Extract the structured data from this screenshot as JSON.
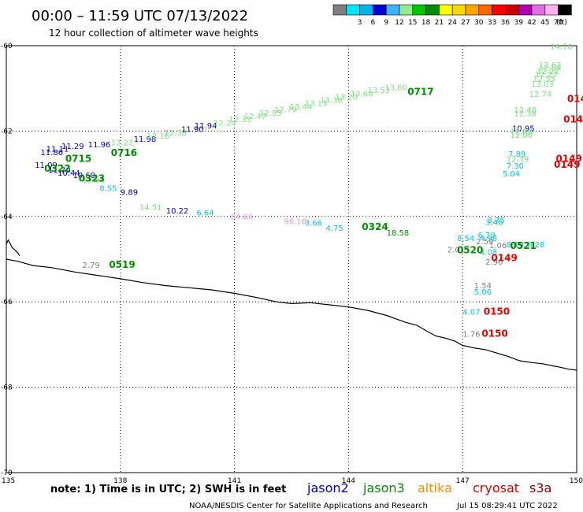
{
  "header": {
    "title": "00:00 – 11:59 UTC 07/13/2022",
    "subtitle": "12 hour collection of altimeter wave heights"
  },
  "legend": {
    "unit": "(ft)",
    "swatches": [
      {
        "label": "",
        "color": "#7f7f7f"
      },
      {
        "label": "3",
        "color": "#00e5ff"
      },
      {
        "label": "6",
        "color": "#00b2ee"
      },
      {
        "label": "9",
        "color": "#0000cd"
      },
      {
        "label": "12",
        "color": "#3cb3ff"
      },
      {
        "label": "15",
        "color": "#90ee90"
      },
      {
        "label": "18",
        "color": "#00c800"
      },
      {
        "label": "21",
        "color": "#008b00"
      },
      {
        "label": "24",
        "color": "#ffff00"
      },
      {
        "label": "27",
        "color": "#ffd700"
      },
      {
        "label": "30",
        "color": "#ffa500"
      },
      {
        "label": "33",
        "color": "#ff6a00"
      },
      {
        "label": "36",
        "color": "#ff0000"
      },
      {
        "label": "39",
        "color": "#cd0000"
      },
      {
        "label": "42",
        "color": "#b000b0"
      },
      {
        "label": "45",
        "color": "#e070e0"
      },
      {
        "label": "70",
        "color": "#ffb0f0"
      },
      {
        "label": "",
        "color": "#000000"
      }
    ]
  },
  "axes": {
    "x_ticks": [
      {
        "label": "135",
        "value": 135
      },
      {
        "label": "138",
        "value": 138
      },
      {
        "label": "141",
        "value": 141
      },
      {
        "label": "144",
        "value": 144
      },
      {
        "label": "147",
        "value": 147
      },
      {
        "label": "150",
        "value": 150
      }
    ],
    "y_ticks": [
      {
        "label": "-60",
        "value": -60
      },
      {
        "label": "-62",
        "value": -62
      },
      {
        "label": "-64",
        "value": -64
      },
      {
        "label": "-66",
        "value": -66
      },
      {
        "label": "-68",
        "value": -68
      },
      {
        "label": "-70",
        "value": -70
      }
    ],
    "xlim": [
      135,
      150
    ],
    "ylim": [
      -70,
      -60
    ],
    "grid": "dotted"
  },
  "colors": {
    "jason2": "#0000cd",
    "jason3": "#008b00",
    "altika": "#ff8c00",
    "cryosat": "#cd0000",
    "s3a": "#8b0000",
    "light_green": "#7ce07c",
    "cyan": "#00c8e6",
    "gray": "#7f7f7f",
    "pink": "#e898d0",
    "red": "#e60000"
  },
  "footer": {
    "note": "note:  1) Time is in UTC;  2) SWH is in feet",
    "satellites": [
      {
        "name": "jason2",
        "color": "#0000cd"
      },
      {
        "name": "jason3",
        "color": "#008b00"
      },
      {
        "name": "altika",
        "color": "#ff8c00"
      },
      {
        "name": "cryosat",
        "color": "#cd0000"
      },
      {
        "name": "s3a",
        "color": "#8b0000"
      }
    ],
    "credit": "NOAA/NESDIS Center for Satellite Applications and Research",
    "timestamp": "Jul 15 08:29:41 UTC 2022"
  },
  "chart_data": {
    "type": "scatter",
    "title": "00:00 – 11:59 UTC 07/13/2022",
    "subtitle": "12 hour collection of altimeter wave heights",
    "xlim": [
      135,
      150
    ],
    "ylim": [
      -70,
      -60
    ],
    "wave_heights": [
      {
        "lon": 138.5,
        "lat": -63.85,
        "text": "14.51",
        "color": "light_green"
      },
      {
        "lon": 139.2,
        "lat": -63.93,
        "text": "10.22",
        "color": "jason2"
      },
      {
        "lon": 140.0,
        "lat": -63.98,
        "text": "6.64",
        "color": "cyan"
      },
      {
        "lon": 140.9,
        "lat": -64.07,
        "text": "64.66",
        "color": "pink"
      },
      {
        "lon": 142.3,
        "lat": -64.18,
        "text": "96.16",
        "color": "pink"
      },
      {
        "lon": 142.85,
        "lat": -64.22,
        "text": "3.66",
        "color": "cyan"
      },
      {
        "lon": 143.4,
        "lat": -64.34,
        "text": "4.75",
        "color": "cyan"
      },
      {
        "lon": 145.0,
        "lat": -64.45,
        "text": "18.58",
        "color": "jason3"
      },
      {
        "lon": 147.65,
        "lat": -64.15,
        "text": "3.75",
        "color": "cyan"
      },
      {
        "lon": 147.6,
        "lat": -64.2,
        "text": "3.46",
        "color": "cyan"
      },
      {
        "lon": 147.4,
        "lat": -64.5,
        "text": "6.79",
        "color": "cyan"
      },
      {
        "lon": 146.85,
        "lat": -64.58,
        "text": "8.54",
        "color": "cyan"
      },
      {
        "lon": 147.45,
        "lat": -64.58,
        "text": "4.98",
        "color": "cyan"
      },
      {
        "lon": 147.35,
        "lat": -64.65,
        "text": "2.59",
        "color": "gray"
      },
      {
        "lon": 146.6,
        "lat": -64.84,
        "text": "2.01",
        "color": "gray"
      },
      {
        "lon": 147.7,
        "lat": -64.74,
        "text": "1.06",
        "color": "gray"
      },
      {
        "lon": 147.45,
        "lat": -64.9,
        "text": "4.08",
        "color": "cyan"
      },
      {
        "lon": 147.6,
        "lat": -65.13,
        "text": "2.90",
        "color": "gray"
      },
      {
        "lon": 148.7,
        "lat": -64.72,
        "text": "6.28",
        "color": "cyan"
      },
      {
        "lon": 148.15,
        "lat": -64.72,
        "text": "8.10",
        "color": "cyan"
      },
      {
        "lon": 137.0,
        "lat": -65.2,
        "text": "2.79",
        "color": "gray"
      },
      {
        "lon": 147.3,
        "lat": -65.68,
        "text": "1.54",
        "color": "gray"
      },
      {
        "lon": 147.3,
        "lat": -65.83,
        "text": "5.06",
        "color": "cyan"
      },
      {
        "lon": 147.0,
        "lat": -66.3,
        "text": "4.07",
        "color": "cyan"
      },
      {
        "lon": 147.0,
        "lat": -66.82,
        "text": "1.76",
        "color": "gray"
      },
      {
        "lon": 149.3,
        "lat": -60.08,
        "text": "14.70",
        "color": "light_green"
      },
      {
        "lon": 149.0,
        "lat": -60.52,
        "text": "12.62",
        "color": "light_green"
      },
      {
        "lon": 149.0,
        "lat": -60.58,
        "text": "12.89",
        "color": "light_green"
      },
      {
        "lon": 148.95,
        "lat": -60.66,
        "text": "12.21",
        "color": "light_green"
      },
      {
        "lon": 148.9,
        "lat": -60.74,
        "text": "12.27",
        "color": "light_green"
      },
      {
        "lon": 148.85,
        "lat": -60.84,
        "text": "12.55",
        "color": "light_green"
      },
      {
        "lon": 148.8,
        "lat": -60.96,
        "text": "13.03",
        "color": "light_green"
      },
      {
        "lon": 148.75,
        "lat": -61.2,
        "text": "12.74",
        "color": "light_green"
      },
      {
        "lon": 148.35,
        "lat": -61.57,
        "text": "12.48",
        "color": "light_green"
      },
      {
        "lon": 148.35,
        "lat": -61.65,
        "text": "12.38",
        "color": "light_green"
      },
      {
        "lon": 148.3,
        "lat": -62.0,
        "text": "10.95",
        "color": "jason2"
      },
      {
        "lon": 148.25,
        "lat": -62.08,
        "text": "12.88",
        "color": "light_green"
      },
      {
        "lon": 148.25,
        "lat": -62.16,
        "text": "12.00",
        "color": "light_green"
      },
      {
        "lon": 148.2,
        "lat": -62.6,
        "text": "7.89",
        "color": "cyan"
      },
      {
        "lon": 148.15,
        "lat": -62.72,
        "text": "12.39",
        "color": "light_green"
      },
      {
        "lon": 148.15,
        "lat": -62.88,
        "text": "7.30",
        "color": "cyan"
      },
      {
        "lon": 148.05,
        "lat": -63.06,
        "text": "5.04",
        "color": "cyan"
      },
      {
        "lon": 135.9,
        "lat": -62.56,
        "text": "11.86",
        "color": "jason2"
      },
      {
        "lon": 136.05,
        "lat": -62.48,
        "text": "11.11",
        "color": "jason2"
      },
      {
        "lon": 136.45,
        "lat": -62.42,
        "text": "11.29",
        "color": "jason2"
      },
      {
        "lon": 137.15,
        "lat": -62.38,
        "text": "11.96",
        "color": "jason2"
      },
      {
        "lon": 137.75,
        "lat": -62.33,
        "text": "12.22",
        "color": "light_green"
      },
      {
        "lon": 138.35,
        "lat": -62.25,
        "text": "11.98",
        "color": "jason2"
      },
      {
        "lon": 138.7,
        "lat": -62.18,
        "text": "12.16",
        "color": "light_green"
      },
      {
        "lon": 139.15,
        "lat": -62.1,
        "text": "12.38",
        "color": "light_green"
      },
      {
        "lon": 139.6,
        "lat": -62.02,
        "text": "11.90",
        "color": "jason2"
      },
      {
        "lon": 139.95,
        "lat": -61.94,
        "text": "11.94",
        "color": "jason2"
      },
      {
        "lon": 140.45,
        "lat": -61.87,
        "text": "12.24",
        "color": "light_green"
      },
      {
        "lon": 140.85,
        "lat": -61.79,
        "text": "12.33",
        "color": "light_green"
      },
      {
        "lon": 141.25,
        "lat": -61.72,
        "text": "12.47",
        "color": "light_green"
      },
      {
        "lon": 141.65,
        "lat": -61.64,
        "text": "12.95",
        "color": "light_green"
      },
      {
        "lon": 142.05,
        "lat": -61.56,
        "text": "12.79",
        "color": "light_green"
      },
      {
        "lon": 142.45,
        "lat": -61.49,
        "text": "13.44",
        "color": "light_green"
      },
      {
        "lon": 142.85,
        "lat": -61.41,
        "text": "13.13",
        "color": "light_green"
      },
      {
        "lon": 143.25,
        "lat": -61.34,
        "text": "13.38",
        "color": "light_green"
      },
      {
        "lon": 143.65,
        "lat": -61.26,
        "text": "13.20",
        "color": "light_green"
      },
      {
        "lon": 144.05,
        "lat": -61.19,
        "text": "13.60",
        "color": "light_green"
      },
      {
        "lon": 144.5,
        "lat": -61.11,
        "text": "13.53",
        "color": "light_green"
      },
      {
        "lon": 144.95,
        "lat": -61.04,
        "text": "13.60",
        "color": "light_green"
      },
      {
        "lon": 135.75,
        "lat": -62.86,
        "text": "11.09",
        "color": "jason2"
      },
      {
        "lon": 136.1,
        "lat": -62.98,
        "text": "11.70",
        "color": "jason2"
      },
      {
        "lon": 136.35,
        "lat": -63.04,
        "text": "10.44",
        "color": "jason2"
      },
      {
        "lon": 136.75,
        "lat": -63.1,
        "text": "10.60",
        "color": "jason2"
      },
      {
        "lon": 137.0,
        "lat": -63.22,
        "text": "13.84",
        "color": "light_green"
      },
      {
        "lon": 137.45,
        "lat": -63.4,
        "text": "8.55",
        "color": "cyan"
      },
      {
        "lon": 138.0,
        "lat": -63.5,
        "text": "9.89",
        "color": "jason2"
      }
    ],
    "pass_labels": [
      {
        "lon": 145.55,
        "lat": -61.15,
        "text": "0717",
        "color": "jason3"
      },
      {
        "lon": 137.75,
        "lat": -62.58,
        "text": "0716",
        "color": "jason3"
      },
      {
        "lon": 136.55,
        "lat": -62.72,
        "text": "0715",
        "color": "jason3"
      },
      {
        "lon": 136.0,
        "lat": -62.95,
        "text": "0322",
        "color": "jason3"
      },
      {
        "lon": 136.9,
        "lat": -63.18,
        "text": "0323",
        "color": "jason3"
      },
      {
        "lon": 144.35,
        "lat": -64.32,
        "text": "0324",
        "color": "jason3"
      },
      {
        "lon": 146.85,
        "lat": -64.86,
        "text": "0520",
        "color": "jason3"
      },
      {
        "lon": 148.25,
        "lat": -64.76,
        "text": "0521",
        "color": "jason3"
      },
      {
        "lon": 137.7,
        "lat": -65.2,
        "text": "0519",
        "color": "jason3"
      },
      {
        "lon": 149.75,
        "lat": -61.32,
        "text": "0148",
        "color": "red"
      },
      {
        "lon": 149.65,
        "lat": -61.8,
        "text": "0148",
        "color": "red"
      },
      {
        "lon": 149.45,
        "lat": -62.72,
        "text": "0149",
        "color": "red"
      },
      {
        "lon": 149.4,
        "lat": -62.86,
        "text": "0149",
        "color": "red"
      },
      {
        "lon": 147.75,
        "lat": -65.05,
        "text": "0149",
        "color": "red"
      },
      {
        "lon": 147.55,
        "lat": -66.3,
        "text": "0150",
        "color": "red"
      },
      {
        "lon": 147.5,
        "lat": -66.82,
        "text": "0150",
        "color": "red"
      }
    ],
    "coastline": [
      [
        135.0,
        -65.0
      ],
      [
        135.3,
        -65.05
      ],
      [
        135.7,
        -65.15
      ],
      [
        136.2,
        -65.2
      ],
      [
        136.8,
        -65.3
      ],
      [
        137.4,
        -65.38
      ],
      [
        138.0,
        -65.46
      ],
      [
        138.6,
        -65.55
      ],
      [
        139.2,
        -65.62
      ],
      [
        139.8,
        -65.67
      ],
      [
        140.4,
        -65.72
      ],
      [
        141.0,
        -65.8
      ],
      [
        141.6,
        -65.9
      ],
      [
        142.1,
        -66.0
      ],
      [
        142.5,
        -66.04
      ],
      [
        143.0,
        -66.02
      ],
      [
        143.5,
        -66.07
      ],
      [
        144.0,
        -66.12
      ],
      [
        144.5,
        -66.2
      ],
      [
        145.0,
        -66.32
      ],
      [
        145.5,
        -66.48
      ],
      [
        145.8,
        -66.55
      ],
      [
        146.05,
        -66.68
      ],
      [
        146.3,
        -66.8
      ],
      [
        146.55,
        -66.85
      ],
      [
        146.8,
        -66.92
      ],
      [
        147.0,
        -67.02
      ],
      [
        147.3,
        -67.08
      ],
      [
        147.6,
        -67.12
      ],
      [
        147.9,
        -67.2
      ],
      [
        148.2,
        -67.28
      ],
      [
        148.5,
        -67.38
      ],
      [
        148.8,
        -67.42
      ],
      [
        149.1,
        -67.45
      ],
      [
        149.5,
        -67.52
      ],
      [
        149.8,
        -67.58
      ],
      [
        150.0,
        -67.6
      ]
    ],
    "coast_inlet": [
      [
        135.0,
        -64.65
      ],
      [
        135.05,
        -64.55
      ],
      [
        135.15,
        -64.72
      ],
      [
        135.3,
        -64.85
      ],
      [
        135.35,
        -64.92
      ]
    ]
  }
}
